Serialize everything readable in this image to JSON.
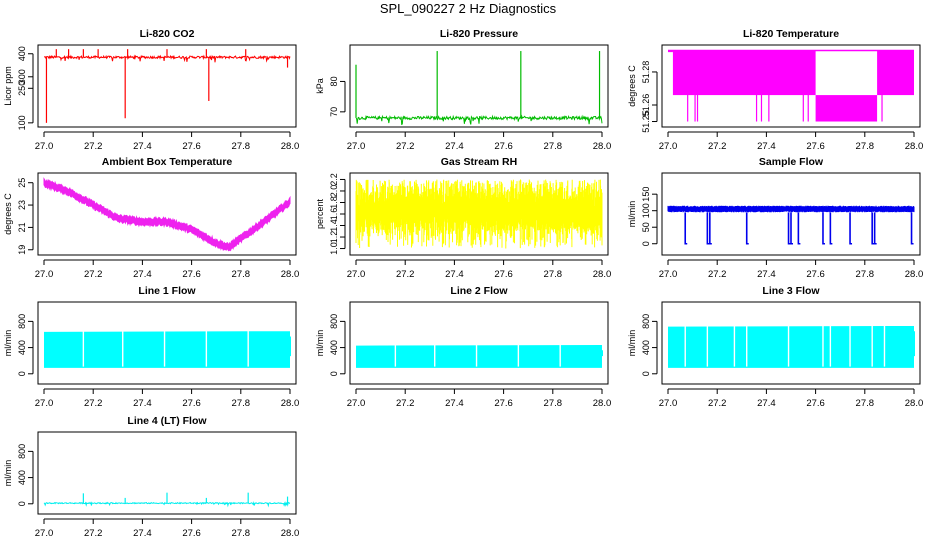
{
  "title": "SPL_090227  2 Hz Diagnostics",
  "chart_data": [
    {
      "type": "line",
      "title": "Li-820 CO2",
      "xlabel": "",
      "ylabel": "Licor ppm",
      "color": "#ff0000",
      "xlim": [
        27.0,
        28.0
      ],
      "ylim": [
        95,
        425
      ],
      "xticks": [
        "27.0",
        "27.2",
        "27.4",
        "27.6",
        "27.8",
        "28.0"
      ],
      "yticks": [
        100,
        250,
        300,
        400
      ],
      "baseline": 385,
      "noise": 5,
      "range": [
        100,
        425
      ],
      "spikes": [
        {
          "x": 27.01,
          "y": 100
        },
        {
          "x": 27.05,
          "y": 420
        },
        {
          "x": 27.1,
          "y": 420
        },
        {
          "x": 27.16,
          "y": 420
        },
        {
          "x": 27.22,
          "y": 420
        },
        {
          "x": 27.33,
          "y": 120
        },
        {
          "x": 27.34,
          "y": 420
        },
        {
          "x": 27.5,
          "y": 420
        },
        {
          "x": 27.66,
          "y": 420
        },
        {
          "x": 27.67,
          "y": 195
        },
        {
          "x": 27.82,
          "y": 420
        },
        {
          "x": 27.99,
          "y": 340
        }
      ]
    },
    {
      "type": "line",
      "title": "Li-820 Pressure",
      "xlabel": "",
      "ylabel": "kPa",
      "color": "#00bb00",
      "xlim": [
        27.0,
        28.0
      ],
      "ylim": [
        66,
        91
      ],
      "xticks": [
        "27.0",
        "27.2",
        "27.4",
        "27.6",
        "27.8",
        "28.0"
      ],
      "yticks": [
        70,
        80
      ],
      "baseline": 68,
      "noise": 0.5,
      "range": [
        67,
        90
      ],
      "spikes": [
        {
          "x": 27.0,
          "y": 85.5
        },
        {
          "x": 27.33,
          "y": 90
        },
        {
          "x": 27.67,
          "y": 90
        },
        {
          "x": 27.99,
          "y": 90
        }
      ]
    },
    {
      "type": "area",
      "title": "Li-820 Temperature",
      "xlabel": "",
      "ylabel": "degrees C",
      "color": "#ff00ff",
      "xlim": [
        27.0,
        28.0
      ],
      "ylim": [
        51.2485,
        51.2945
      ],
      "xticks": [
        "27.0",
        "27.2",
        "27.4",
        "27.6",
        "27.8",
        "28.0"
      ],
      "yticks": [
        51.25,
        51.26,
        51.28
      ],
      "ytick_labels": [
        "51.25",
        "51.26",
        "51.28"
      ],
      "bands": [
        {
          "x0": 27.0,
          "x1": 27.02,
          "low": 51.292,
          "high": 51.293
        },
        {
          "x0": 27.02,
          "x1": 27.6,
          "low": 51.266,
          "high": 51.293
        },
        {
          "x0": 27.6,
          "x1": 27.85,
          "low": 51.25,
          "high": 51.266
        },
        {
          "x0": 27.85,
          "x1": 28.0,
          "low": 51.266,
          "high": 51.293
        }
      ],
      "drops": [
        27.08,
        27.11,
        27.12,
        27.36,
        27.38,
        27.41,
        27.55,
        27.57,
        27.87
      ],
      "drop_to": 51.25
    },
    {
      "type": "line",
      "title": "Ambient Box Temperature",
      "xlabel": "",
      "ylabel": "degrees C",
      "color": "#ee22ee",
      "xlim": [
        27.0,
        28.0
      ],
      "ylim": [
        18.8,
        25.6
      ],
      "xticks": [
        "27.0",
        "27.2",
        "27.4",
        "27.6",
        "27.8",
        "28.0"
      ],
      "yticks": [
        19,
        21,
        23,
        25
      ],
      "x": [
        27.0,
        27.1,
        27.2,
        27.3,
        27.4,
        27.5,
        27.6,
        27.7,
        27.75,
        27.8,
        27.9,
        28.0
      ],
      "y": [
        25.0,
        24.2,
        23.0,
        21.8,
        21.5,
        21.5,
        20.8,
        19.6,
        19.2,
        20.0,
        21.6,
        23.3
      ],
      "thickness": 0.55
    },
    {
      "type": "line",
      "title": "Gas Stream RH",
      "xlabel": "",
      "ylabel": "percent",
      "color": "#ffff00",
      "xlim": [
        27.0,
        28.0
      ],
      "ylim": [
        0.94,
        2.26
      ],
      "xticks": [
        "27.0",
        "27.2",
        "27.4",
        "27.6",
        "27.8",
        "28.0"
      ],
      "yticks": [
        1.0,
        1.2,
        1.4,
        1.6,
        1.8,
        2.0,
        2.2
      ],
      "ytick_labels": [
        "1.0",
        "1.2",
        "1.4",
        "1.6",
        "1.8",
        "2.0",
        "2.2"
      ],
      "noise_band": [
        1.0,
        2.2
      ],
      "core_band": [
        1.3,
        2.0
      ]
    },
    {
      "type": "line",
      "title": "Sample Flow",
      "xlabel": "",
      "ylabel": "ml/min",
      "color": "#0000ee",
      "xlim": [
        27.0,
        28.0
      ],
      "ylim": [
        -25,
        205
      ],
      "xticks": [
        "27.0",
        "27.2",
        "27.4",
        "27.6",
        "27.8",
        "28.0"
      ],
      "yticks": [
        0,
        50,
        100,
        150
      ],
      "band": [
        95,
        115
      ],
      "dips": [
        27.07,
        27.16,
        27.17,
        27.32,
        27.49,
        27.5,
        27.53,
        27.63,
        27.66,
        27.74,
        27.83,
        27.84,
        27.99
      ],
      "dip_to": 0
    },
    {
      "type": "area",
      "title": "Line 1 Flow",
      "xlabel": "",
      "ylabel": "ml/min",
      "color": "#00ffff",
      "xlim": [
        27.0,
        28.0
      ],
      "ylim": [
        -110,
        1050
      ],
      "xticks": [
        "27.0",
        "27.2",
        "27.4",
        "27.6",
        "27.8",
        "28.0"
      ],
      "yticks": [
        0,
        400,
        800
      ],
      "low": 90,
      "high": 640,
      "high_end": 650,
      "gaps": [
        27.16,
        27.32,
        27.49,
        27.66,
        27.83
      ]
    },
    {
      "type": "area",
      "title": "Line 2 Flow",
      "xlabel": "",
      "ylabel": "ml/min",
      "color": "#00ffff",
      "xlim": [
        27.0,
        28.0
      ],
      "ylim": [
        -110,
        1050
      ],
      "xticks": [
        "27.0",
        "27.2",
        "27.4",
        "27.6",
        "27.8",
        "28.0"
      ],
      "yticks": [
        0,
        400,
        800
      ],
      "low": 90,
      "high": 430,
      "high_end": 440,
      "gaps": [
        27.16,
        27.32,
        27.49,
        27.66,
        27.83
      ]
    },
    {
      "type": "area",
      "title": "Line 3 Flow",
      "xlabel": "",
      "ylabel": "ml/min",
      "color": "#00ffff",
      "xlim": [
        27.0,
        28.0
      ],
      "ylim": [
        -110,
        1050
      ],
      "xticks": [
        "27.0",
        "27.2",
        "27.4",
        "27.6",
        "27.8",
        "28.0"
      ],
      "yticks": [
        0,
        400,
        800
      ],
      "low": 90,
      "high": 720,
      "high_end": 730,
      "gaps": [
        27.07,
        27.16,
        27.27,
        27.32,
        27.49,
        27.63,
        27.66,
        27.74,
        27.83,
        27.88
      ]
    },
    {
      "type": "line",
      "title": "Line 4 (LT) Flow",
      "xlabel": "",
      "ylabel": "ml/min",
      "color": "#00eeee",
      "xlim": [
        27.0,
        28.0
      ],
      "ylim": [
        -110,
        1050
      ],
      "xticks": [
        "27.0",
        "27.2",
        "27.4",
        "27.6",
        "27.8",
        "28.0"
      ],
      "yticks": [
        0,
        400,
        800
      ],
      "baseline": 10,
      "noise": 8,
      "spikes": [
        {
          "x": 27.16,
          "y": 160
        },
        {
          "x": 27.33,
          "y": 90
        },
        {
          "x": 27.5,
          "y": 170
        },
        {
          "x": 27.66,
          "y": 90
        },
        {
          "x": 27.83,
          "y": 170
        },
        {
          "x": 27.99,
          "y": 110
        }
      ]
    }
  ]
}
